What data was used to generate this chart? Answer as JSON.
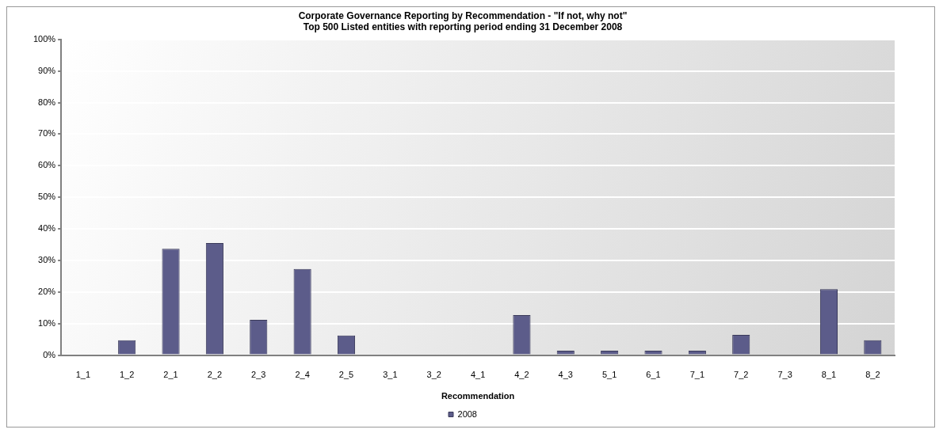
{
  "chart_data": {
    "type": "bar",
    "title": "Corporate Governance Reporting by Recommendation - \"If not, why not\"",
    "subtitle": "Top 500 Listed entities with reporting period ending 31 December 2008",
    "xlabel": "Recommendation",
    "categories": [
      "1_1",
      "1_2",
      "2_1",
      "2_2",
      "2_3",
      "2_4",
      "2_5",
      "3_1",
      "3_2",
      "4_1",
      "4_2",
      "4_3",
      "5_1",
      "6_1",
      "7_1",
      "7_2",
      "7_3",
      "8_1",
      "8_2"
    ],
    "series": [
      {
        "name": "2008",
        "color": "#5c5c8a",
        "values": [
          0,
          4.7,
          33.7,
          35.5,
          11.2,
          27.3,
          6.2,
          0,
          0,
          0,
          12.7,
          1.4,
          1.4,
          1.4,
          1.4,
          6.4,
          0,
          20.9,
          4.7
        ]
      }
    ],
    "ylim": [
      0,
      100
    ],
    "yticks": [
      {
        "value": 0,
        "label": "0%"
      },
      {
        "value": 10,
        "label": "10%"
      },
      {
        "value": 20,
        "label": "20%"
      },
      {
        "value": 30,
        "label": "30%"
      },
      {
        "value": 40,
        "label": "40%"
      },
      {
        "value": 50,
        "label": "50%"
      },
      {
        "value": 60,
        "label": "60%"
      },
      {
        "value": 70,
        "label": "70%"
      },
      {
        "value": 80,
        "label": "80%"
      },
      {
        "value": 90,
        "label": "90%"
      },
      {
        "value": 100,
        "label": "100%"
      }
    ],
    "grid": "y",
    "legend": "bottom"
  }
}
